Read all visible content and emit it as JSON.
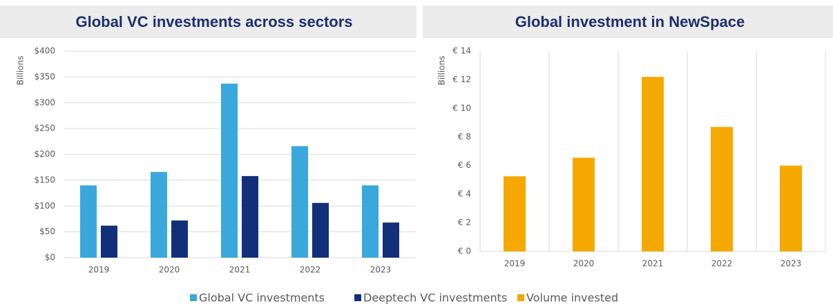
{
  "chart_data": [
    {
      "type": "bar",
      "title": "Global VC investments across sectors",
      "y_label": "Billions",
      "categories": [
        "2019",
        "2020",
        "2021",
        "2022",
        "2023"
      ],
      "series": [
        {
          "name": "Global VC investments",
          "color": "#3aa8dc",
          "values": [
            140,
            166,
            337,
            216,
            140
          ]
        },
        {
          "name": "Deeptech VC investments",
          "color": "#12307a",
          "values": [
            62,
            72,
            158,
            106,
            68
          ]
        }
      ],
      "ylim": [
        0,
        400
      ],
      "yticks": [
        {
          "value": 0,
          "label": "$0"
        },
        {
          "value": 50,
          "label": "$50"
        },
        {
          "value": 100,
          "label": "$100"
        },
        {
          "value": 150,
          "label": "$150"
        },
        {
          "value": 200,
          "label": "$200"
        },
        {
          "value": 250,
          "label": "$250"
        },
        {
          "value": 300,
          "label": "$300"
        },
        {
          "value": 350,
          "label": "$350"
        },
        {
          "value": 400,
          "label": "$400"
        }
      ],
      "grid": "horizontal"
    },
    {
      "type": "bar",
      "title": "Global investment in NewSpace",
      "y_label": "Billions",
      "categories": [
        "2019",
        "2020",
        "2021",
        "2022",
        "2023"
      ],
      "series": [
        {
          "name": "Volume invested",
          "color": "#f5a800",
          "values": [
            5.25,
            6.55,
            12.2,
            8.7,
            6.0
          ]
        }
      ],
      "ylim": [
        0,
        14
      ],
      "yticks": [
        {
          "value": 0,
          "label": "€ 0"
        },
        {
          "value": 2,
          "label": "€ 2"
        },
        {
          "value": 4,
          "label": "€ 4"
        },
        {
          "value": 6,
          "label": "€ 6"
        },
        {
          "value": 8,
          "label": "€ 8"
        },
        {
          "value": 10,
          "label": "€ 10"
        },
        {
          "value": 12,
          "label": "€ 12"
        },
        {
          "value": 14,
          "label": "€ 14"
        }
      ],
      "grid": "vertical"
    }
  ]
}
